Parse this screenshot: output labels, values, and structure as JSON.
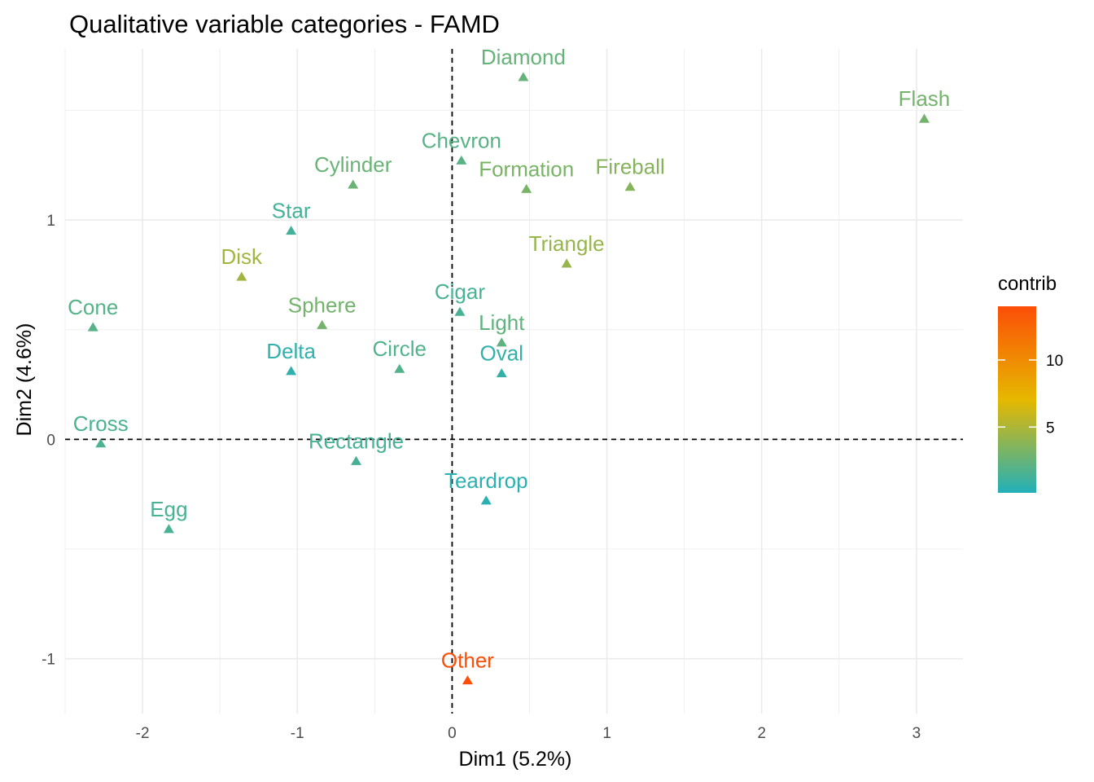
{
  "chart_data": {
    "type": "scatter",
    "title": "Qualitative variable categories - FAMD",
    "xlabel": "Dim1 (5.2%)",
    "ylabel": "Dim2 (4.6%)",
    "xlim": [
      -2.5,
      3.3
    ],
    "ylim": [
      -1.25,
      1.78
    ],
    "x_ticks": [
      -2,
      -1,
      0,
      1,
      2,
      3
    ],
    "y_ticks": [
      -1,
      0,
      1
    ],
    "grid": true,
    "reference_lines": {
      "x": 0,
      "y": 0,
      "style": "dashed"
    },
    "marker": "triangle",
    "color_by": "contrib",
    "legend": {
      "title": "contrib",
      "placement": "right",
      "range": [
        0.1,
        14
      ],
      "ticks": [
        5,
        10
      ],
      "colors": {
        "low": "#22B0B9",
        "mid": "#E6B800",
        "high": "#FC4E07"
      }
    },
    "points": [
      {
        "label": "Diamond",
        "x": 0.46,
        "y": 1.65,
        "contrib": 2.5
      },
      {
        "label": "Flash",
        "x": 3.05,
        "y": 1.46,
        "contrib": 3.0
      },
      {
        "label": "Chevron",
        "x": 0.06,
        "y": 1.27,
        "contrib": 2.0
      },
      {
        "label": "Cylinder",
        "x": -0.64,
        "y": 1.16,
        "contrib": 2.6
      },
      {
        "label": "Formation",
        "x": 0.48,
        "y": 1.14,
        "contrib": 3.2
      },
      {
        "label": "Fireball",
        "x": 1.15,
        "y": 1.15,
        "contrib": 3.6
      },
      {
        "label": "Star",
        "x": -1.04,
        "y": 0.95,
        "contrib": 1.3
      },
      {
        "label": "Triangle",
        "x": 0.74,
        "y": 0.8,
        "contrib": 4.2
      },
      {
        "label": "Disk",
        "x": -1.36,
        "y": 0.74,
        "contrib": 4.6
      },
      {
        "label": "Cone",
        "x": -2.32,
        "y": 0.51,
        "contrib": 1.9
      },
      {
        "label": "Sphere",
        "x": -0.84,
        "y": 0.52,
        "contrib": 3.0
      },
      {
        "label": "Cigar",
        "x": 0.05,
        "y": 0.58,
        "contrib": 1.5
      },
      {
        "label": "Light",
        "x": 0.32,
        "y": 0.44,
        "contrib": 2.3
      },
      {
        "label": "Delta",
        "x": -1.04,
        "y": 0.31,
        "contrib": 0.6
      },
      {
        "label": "Circle",
        "x": -0.34,
        "y": 0.32,
        "contrib": 1.8
      },
      {
        "label": "Oval",
        "x": 0.32,
        "y": 0.3,
        "contrib": 0.7
      },
      {
        "label": "Cross",
        "x": -2.27,
        "y": -0.02,
        "contrib": 1.6
      },
      {
        "label": "Rectangle",
        "x": -0.62,
        "y": -0.1,
        "contrib": 1.4
      },
      {
        "label": "Teardrop",
        "x": 0.22,
        "y": -0.28,
        "contrib": 0.4
      },
      {
        "label": "Egg",
        "x": -1.83,
        "y": -0.41,
        "contrib": 1.5
      },
      {
        "label": "Other",
        "x": 0.1,
        "y": -1.1,
        "contrib": 14.0
      }
    ]
  }
}
